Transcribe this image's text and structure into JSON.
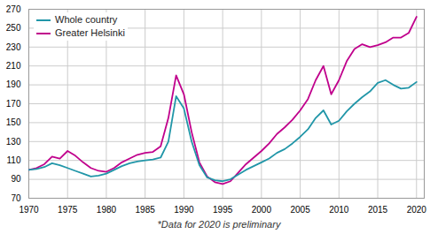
{
  "chart_data": {
    "type": "line",
    "footnote": "*Data for 2020 is preliminary",
    "x": [
      1970,
      1971,
      1972,
      1973,
      1974,
      1975,
      1976,
      1977,
      1978,
      1979,
      1980,
      1981,
      1982,
      1983,
      1984,
      1985,
      1986,
      1987,
      1988,
      1989,
      1990,
      1991,
      1992,
      1993,
      1994,
      1995,
      1996,
      1997,
      1998,
      1999,
      2000,
      2001,
      2002,
      2003,
      2004,
      2005,
      2006,
      2007,
      2008,
      2009,
      2010,
      2011,
      2012,
      2013,
      2014,
      2015,
      2016,
      2017,
      2018,
      2019,
      2020
    ],
    "series": [
      {
        "name": "Whole country",
        "color": "#2196a8",
        "values": [
          100,
          101,
          103,
          107,
          105,
          102,
          99,
          96,
          93,
          94,
          96,
          100,
          104,
          107,
          109,
          110,
          111,
          113,
          130,
          178,
          165,
          130,
          105,
          92,
          89,
          88,
          90,
          95,
          100,
          104,
          108,
          112,
          118,
          122,
          128,
          135,
          143,
          155,
          163,
          148,
          152,
          162,
          170,
          177,
          183,
          192,
          195,
          190,
          186,
          187,
          193
        ]
      },
      {
        "name": "Greater Helsinki",
        "color": "#c0008c",
        "values": [
          100,
          102,
          106,
          114,
          112,
          120,
          115,
          108,
          102,
          99,
          98,
          102,
          108,
          112,
          116,
          118,
          119,
          125,
          155,
          200,
          180,
          140,
          108,
          93,
          87,
          85,
          88,
          97,
          106,
          113,
          120,
          128,
          138,
          145,
          153,
          163,
          175,
          195,
          210,
          180,
          195,
          215,
          228,
          233,
          230,
          232,
          235,
          240,
          240,
          245,
          262
        ]
      }
    ],
    "xlim": [
      1970,
      2021
    ],
    "xticks": [
      1970,
      1975,
      1980,
      1985,
      1990,
      1995,
      2000,
      2005,
      2010,
      2015,
      2020
    ],
    "ylim": [
      70,
      270
    ],
    "yticks": [
      70,
      90,
      110,
      130,
      150,
      170,
      190,
      210,
      230,
      250,
      270
    ],
    "grid": true,
    "legend": "upper left"
  }
}
